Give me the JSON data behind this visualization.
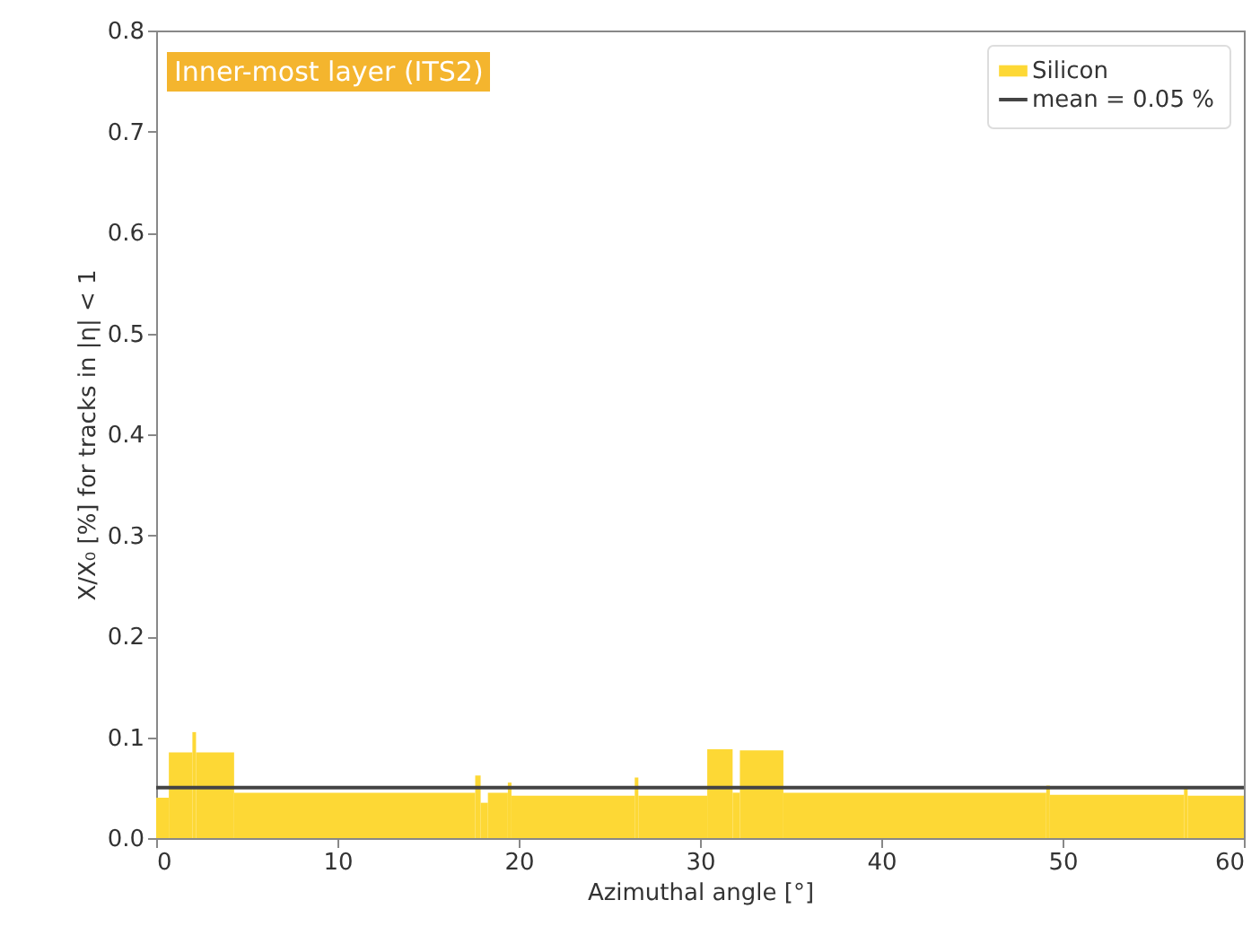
{
  "chart_data": {
    "type": "histogram",
    "xlabel": "Azimuthal angle [°]",
    "ylabel": "X/X₀ [%] for tracks in |η| < 1",
    "annotations": [
      "Inner-most layer (ITS2)"
    ],
    "bins": [
      0,
      0.7,
      2.0,
      2.2,
      4.3,
      17.6,
      17.9,
      18.3,
      19.4,
      19.6,
      26.4,
      26.6,
      30.4,
      31.8,
      32.2,
      34.6,
      49.1,
      49.3,
      56.7,
      56.9,
      60
    ],
    "series": [
      {
        "name": "Silicon",
        "color": "#fdd835",
        "values": [
          0.04,
          0.085,
          0.105,
          0.085,
          0.045,
          0.062,
          0.035,
          0.045,
          0.055,
          0.042,
          0.06,
          0.042,
          0.088,
          0.045,
          0.087,
          0.045,
          0.052,
          0.043,
          0.05,
          0.042
        ]
      }
    ],
    "ref_lines": [
      {
        "axis": "y",
        "value": 0.05,
        "label": "mean = 0.05 %",
        "color": "#444444"
      }
    ],
    "xlim": [
      0,
      60
    ],
    "xticks": [
      0,
      10,
      20,
      30,
      40,
      50,
      60
    ],
    "ylim": [
      0,
      0.8
    ],
    "yticks": [
      {
        "value": 0,
        "label": "0.0"
      },
      0.1,
      0.2,
      0.3,
      0.4,
      0.5,
      0.6,
      0.7,
      0.8
    ],
    "grid": false,
    "legend": "top right"
  }
}
